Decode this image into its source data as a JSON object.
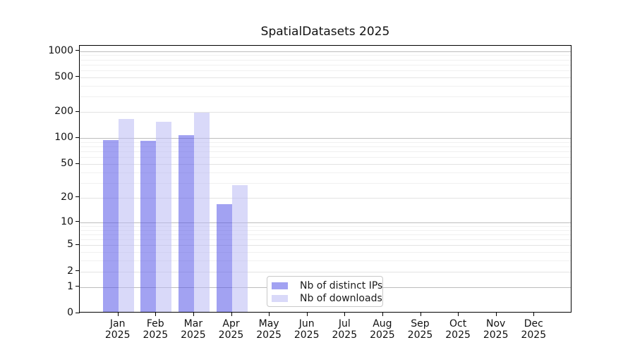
{
  "chart_data": {
    "type": "bar",
    "title": "SpatialDatasets 2025",
    "year_label": "2025",
    "categories": [
      "Jan",
      "Feb",
      "Mar",
      "Apr",
      "May",
      "Jun",
      "Jul",
      "Aug",
      "Sep",
      "Oct",
      "Nov",
      "Dec"
    ],
    "series": [
      {
        "name": "Nb of distinct IPs",
        "color": "rgba(80,80,230,0.53)",
        "values": [
          91,
          90,
          105,
          16,
          0,
          0,
          0,
          0,
          0,
          0,
          0,
          0
        ]
      },
      {
        "name": "Nb of downloads",
        "color": "rgba(186,186,244,0.55)",
        "values": [
          160,
          150,
          190,
          27,
          0,
          0,
          0,
          0,
          0,
          0,
          0,
          0
        ]
      }
    ],
    "xlabel": "",
    "ylabel": "",
    "y_axis": {
      "scale": "mirror-log: position proportional to log10(1+value)",
      "tick_values": [
        0,
        1,
        2,
        5,
        10,
        20,
        50,
        100,
        200,
        500,
        1000
      ],
      "major_gridlines": [
        1,
        10,
        100,
        1000
      ],
      "mid_gridlines": [
        2,
        5,
        20,
        50,
        200,
        500
      ],
      "minor_gridlines": [
        3,
        4,
        6,
        7,
        8,
        9,
        30,
        40,
        60,
        70,
        80,
        90,
        300,
        400,
        600,
        700,
        800,
        900
      ],
      "top_value_approx": 1140
    },
    "grid": true,
    "legend_position": "inside-bottom-center",
    "style": {
      "major_grid_color": "#bdbdbd",
      "mid_grid_color": "#e3e3e3",
      "minor_grid_color": "#f0f0f0",
      "spine_color": "#000000",
      "text_color": "#111111"
    }
  }
}
